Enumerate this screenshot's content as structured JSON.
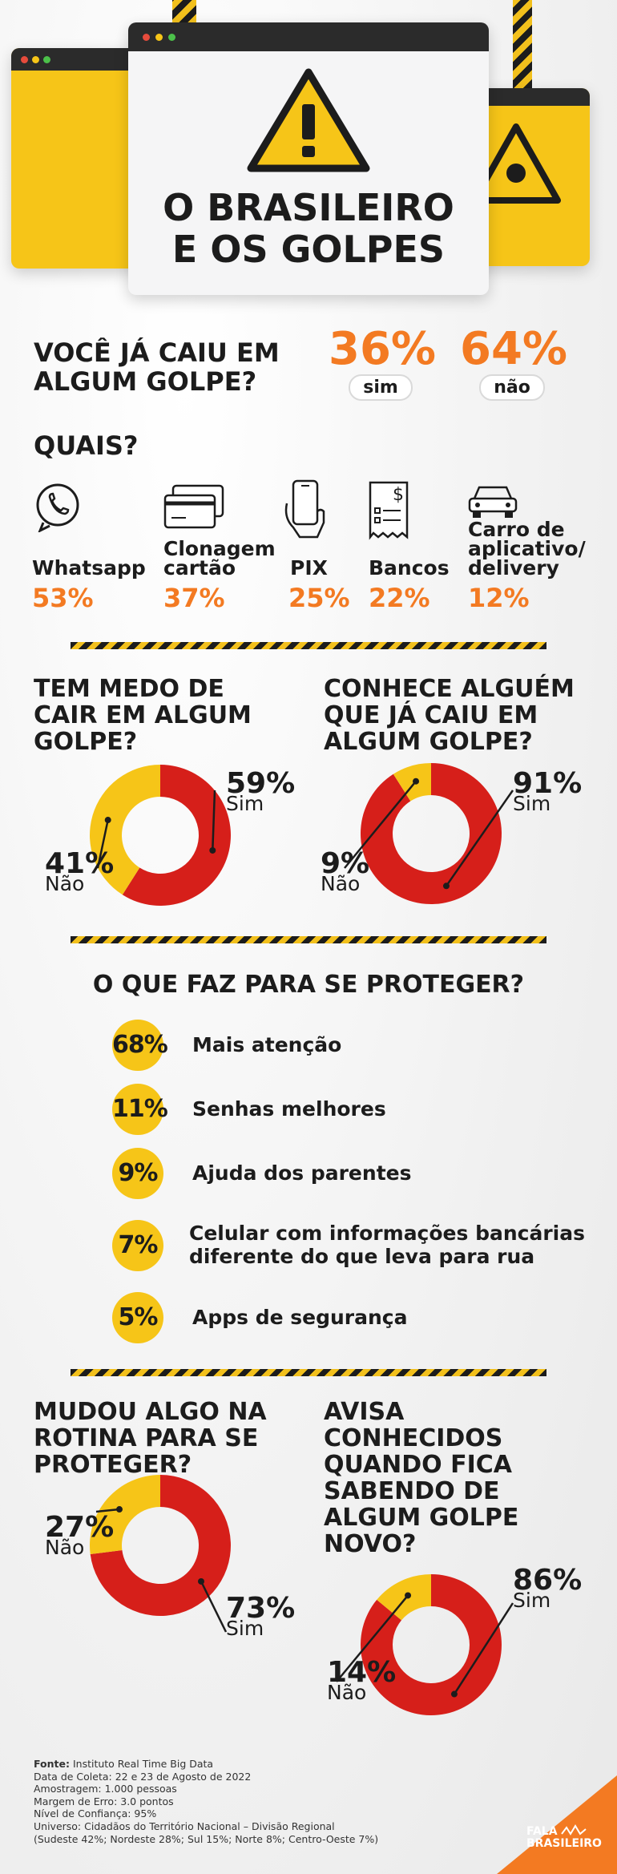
{
  "header": {
    "title_line1": "O BRASILEIRO",
    "title_line2": "E OS GOLPES"
  },
  "colors": {
    "yellow": "#f6c518",
    "red": "#d61f1a",
    "orange": "#f37a22",
    "dark": "#2b2b2b"
  },
  "q1": {
    "question_line1": "VOCÊ JÁ CAIU EM",
    "question_line2": "ALGUM GOLPE?",
    "yes_pct": "36%",
    "yes_label": "sim",
    "no_pct": "64%",
    "no_label": "não"
  },
  "quais": {
    "title": "QUAIS?",
    "items": [
      {
        "icon": "whatsapp-icon",
        "label_lines": [
          "Whatsapp"
        ],
        "pct": "53%"
      },
      {
        "icon": "credit-card-icon",
        "label_lines": [
          "Clonagem",
          "cartão"
        ],
        "pct": "37%"
      },
      {
        "icon": "phone-hand-icon",
        "label_lines": [
          "PIX"
        ],
        "pct": "25%"
      },
      {
        "icon": "bank-document-icon",
        "label_lines": [
          "Bancos"
        ],
        "pct": "22%"
      },
      {
        "icon": "car-icon",
        "label_lines": [
          "Carro de",
          "aplicativo/",
          "delivery"
        ],
        "pct": "12%"
      }
    ]
  },
  "q_medo": {
    "lines": [
      "TEM MEDO DE",
      "CAIR EM ALGUM",
      "GOLPE?"
    ]
  },
  "q_conhece": {
    "lines": [
      "CONHECE ALGUÉM",
      "QUE JÁ CAIU EM",
      "ALGUM GOLPE?"
    ]
  },
  "protect": {
    "title": "O QUE FAZ PARA SE PROTEGER?",
    "items": [
      {
        "pct": "68%",
        "label_lines": [
          "Mais atenção"
        ]
      },
      {
        "pct": "11%",
        "label_lines": [
          "Senhas melhores"
        ]
      },
      {
        "pct": "9%",
        "label_lines": [
          "Ajuda dos parentes"
        ]
      },
      {
        "pct": "7%",
        "label_lines": [
          "Celular com informações bancárias",
          "diferente do que leva para rua"
        ]
      },
      {
        "pct": "5%",
        "label_lines": [
          "Apps de segurança"
        ]
      }
    ]
  },
  "q_mudou": {
    "lines": [
      "MUDOU ALGO NA",
      "ROTINA PARA SE",
      "PROTEGER?"
    ]
  },
  "q_avisa": {
    "lines": [
      "AVISA",
      "CONHECIDOS",
      "QUANDO FICA",
      "SABENDO DE",
      "ALGUM GOLPE",
      "NOVO?"
    ]
  },
  "chart_data": [
    {
      "type": "pie",
      "categories": [
        "Sim",
        "Não"
      ],
      "values": [
        59,
        41
      ],
      "labels": [
        "59%",
        "41%"
      ]
    },
    {
      "type": "pie",
      "categories": [
        "Sim",
        "Não"
      ],
      "values": [
        91,
        9
      ],
      "labels": [
        "91%",
        "9%"
      ]
    },
    {
      "type": "pie",
      "categories": [
        "Sim",
        "Não"
      ],
      "values": [
        73,
        27
      ],
      "labels": [
        "73%",
        "27%"
      ]
    },
    {
      "type": "pie",
      "categories": [
        "Sim",
        "Não"
      ],
      "values": [
        86,
        14
      ],
      "labels": [
        "86%",
        "14%"
      ]
    }
  ],
  "footer": {
    "source_label": "Fonte:",
    "source_value": " Instituto Real Time Big Data",
    "lines": [
      "Data de Coleta: 22 e 23 de Agosto de 2022",
      "Amostragem: 1.000 pessoas",
      "Margem de Erro: 3.0 pontos",
      "Nível de Confiança: 95%",
      "Universo: Cidadãos do Território Nacional – Divisão Regional",
      "(Sudeste 42%; Nordeste 28%; Sul 15%; Norte 8%; Centro-Oeste 7%)"
    ],
    "logo_line1": "FALA",
    "logo_line2": "BRASILEIRO"
  }
}
